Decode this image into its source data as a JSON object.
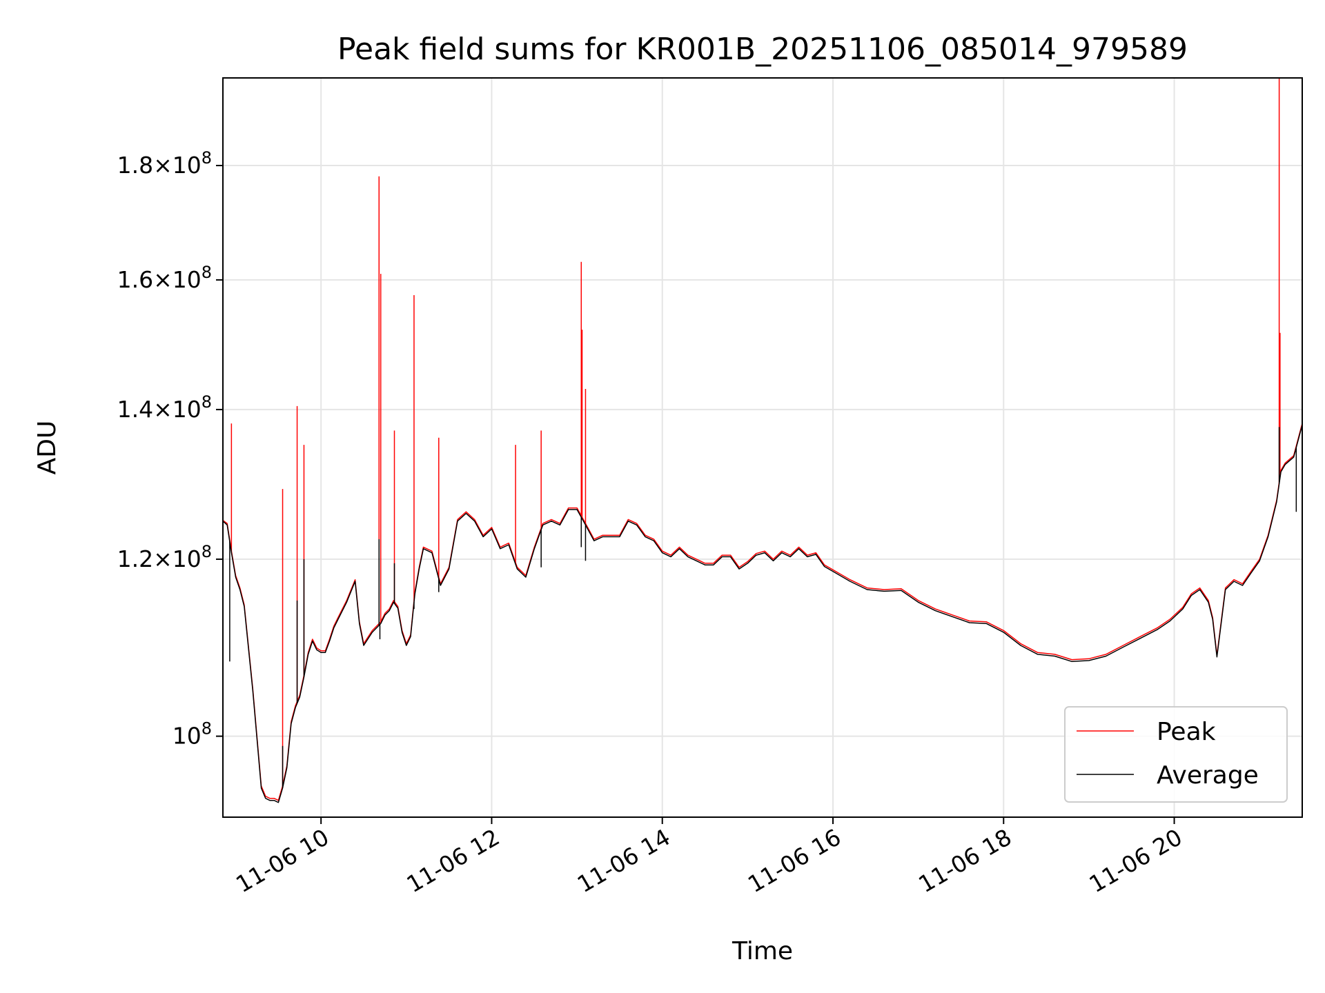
{
  "chart_data": {
    "type": "line",
    "title": "Peak field sums for KR001B_20251106_085014_979589",
    "xlabel": "Time",
    "ylabel": "ADU",
    "yscale": "log",
    "x_unit": "hour of day 2025-11-06",
    "xlim": [
      8.85,
      21.5
    ],
    "ylim": [
      92000000,
      197000000
    ],
    "grid": true,
    "legend_position": "lower-right",
    "x_ticks": [
      {
        "value": 10,
        "label": "11-06 10"
      },
      {
        "value": 12,
        "label": "11-06 12"
      },
      {
        "value": 14,
        "label": "11-06 14"
      },
      {
        "value": 16,
        "label": "11-06 16"
      },
      {
        "value": 18,
        "label": "11-06 18"
      },
      {
        "value": 20,
        "label": "11-06 20"
      }
    ],
    "y_ticks": [
      {
        "value": 100000000,
        "mantissa": "",
        "exp": "8",
        "base": "10"
      },
      {
        "value": 120000000,
        "mantissa": "1.2",
        "exp": "8",
        "base": "10"
      },
      {
        "value": 140000000,
        "mantissa": "1.4",
        "exp": "8",
        "base": "10"
      },
      {
        "value": 160000000,
        "mantissa": "1.6",
        "exp": "8",
        "base": "10"
      },
      {
        "value": 180000000,
        "mantissa": "1.8",
        "exp": "8",
        "base": "10"
      }
    ],
    "series": [
      {
        "name": "Peak",
        "color": "#ff0000",
        "x": [
          8.85,
          8.9,
          8.95,
          9.0,
          9.05,
          9.1,
          9.2,
          9.3,
          9.35,
          9.4,
          9.45,
          9.5,
          9.55,
          9.6,
          9.65,
          9.7,
          9.75,
          9.8,
          9.85,
          9.9,
          9.95,
          10.0,
          10.05,
          10.1,
          10.15,
          10.2,
          10.3,
          10.4,
          10.45,
          10.5,
          10.6,
          10.7,
          10.75,
          10.8,
          10.85,
          10.9,
          10.95,
          11.0,
          11.05,
          11.1,
          11.15,
          11.2,
          11.3,
          11.4,
          11.5,
          11.6,
          11.7,
          11.8,
          11.9,
          12.0,
          12.1,
          12.2,
          12.3,
          12.4,
          12.5,
          12.6,
          12.7,
          12.8,
          12.9,
          13.0,
          13.1,
          13.2,
          13.3,
          13.4,
          13.5,
          13.6,
          13.7,
          13.8,
          13.9,
          14.0,
          14.1,
          14.2,
          14.3,
          14.4,
          14.5,
          14.6,
          14.7,
          14.8,
          14.9,
          15.0,
          15.1,
          15.2,
          15.3,
          15.4,
          15.5,
          15.6,
          15.7,
          15.8,
          15.9,
          16.0,
          16.2,
          16.4,
          16.6,
          16.8,
          17.0,
          17.2,
          17.4,
          17.6,
          17.8,
          18.0,
          18.2,
          18.4,
          18.6,
          18.8,
          19.0,
          19.2,
          19.4,
          19.6,
          19.8,
          19.95,
          20.1,
          20.2,
          20.3,
          20.4,
          20.45,
          20.5,
          20.55,
          20.6,
          20.7,
          20.8,
          20.9,
          21.0,
          21.1,
          21.2,
          21.25,
          21.3,
          21.4,
          21.5
        ],
        "values": [
          124900000,
          124500000,
          121000000,
          118000000,
          116500000,
          114500000,
          105000000,
          95000000,
          94000000,
          93800000,
          93800000,
          93600000,
          95000000,
          97000000,
          101500000,
          103200000,
          104300000,
          106500000,
          109000000,
          110500000,
          109500000,
          109200000,
          109200000,
          110500000,
          112000000,
          113000000,
          115000000,
          117500000,
          112500000,
          110000000,
          111500000,
          112500000,
          113500000,
          114000000,
          115000000,
          114300000,
          111500000,
          110000000,
          111000000,
          116000000,
          119000000,
          121500000,
          121000000,
          117000000,
          119000000,
          125000000,
          126000000,
          125000000,
          123000000,
          124000000,
          121500000,
          122000000,
          119000000,
          118000000,
          121500000,
          124500000,
          125000000,
          124500000,
          126500000,
          126500000,
          124500000,
          122500000,
          123000000,
          123000000,
          123000000,
          125000000,
          124500000,
          123000000,
          122500000,
          121000000,
          120500000,
          121500000,
          120500000,
          120000000,
          119500000,
          119500000,
          120500000,
          120500000,
          119000000,
          119700000,
          120700000,
          121000000,
          120000000,
          121000000,
          120500000,
          121500000,
          120500000,
          120800000,
          119300000,
          118700000,
          117500000,
          116500000,
          116300000,
          116400000,
          115000000,
          114000000,
          113300000,
          112600000,
          112500000,
          111500000,
          110000000,
          109000000,
          108800000,
          108200000,
          108300000,
          108800000,
          109800000,
          110800000,
          111800000,
          112800000,
          114200000,
          115800000,
          116500000,
          115000000,
          113000000,
          108700000,
          112500000,
          116500000,
          117500000,
          117000000,
          118500000,
          120000000,
          123000000,
          127500000,
          131500000,
          132500000,
          133500000,
          138000000
        ],
        "spikes": [
          {
            "x": 8.95,
            "value": 138000000
          },
          {
            "x": 9.55,
            "value": 129000000
          },
          {
            "x": 9.72,
            "value": 140500000
          },
          {
            "x": 9.8,
            "value": 135000000
          },
          {
            "x": 10.68,
            "value": 178000000
          },
          {
            "x": 10.7,
            "value": 161000000
          },
          {
            "x": 10.86,
            "value": 137000000
          },
          {
            "x": 11.09,
            "value": 157500000
          },
          {
            "x": 11.38,
            "value": 136000000
          },
          {
            "x": 12.28,
            "value": 135000000
          },
          {
            "x": 12.58,
            "value": 137000000
          },
          {
            "x": 13.05,
            "value": 163000000
          },
          {
            "x": 13.06,
            "value": 152000000
          },
          {
            "x": 13.1,
            "value": 143000000
          },
          {
            "x": 21.23,
            "value": 197000000
          },
          {
            "x": 21.24,
            "value": 151500000
          }
        ]
      },
      {
        "name": "Average",
        "color": "#000000",
        "x": [
          8.85,
          8.9,
          8.95,
          9.0,
          9.05,
          9.1,
          9.2,
          9.3,
          9.35,
          9.4,
          9.45,
          9.5,
          9.55,
          9.6,
          9.65,
          9.7,
          9.75,
          9.8,
          9.85,
          9.9,
          9.95,
          10.0,
          10.05,
          10.1,
          10.15,
          10.2,
          10.3,
          10.4,
          10.45,
          10.5,
          10.6,
          10.7,
          10.75,
          10.8,
          10.85,
          10.9,
          10.95,
          11.0,
          11.05,
          11.1,
          11.15,
          11.2,
          11.3,
          11.4,
          11.5,
          11.6,
          11.7,
          11.8,
          11.9,
          12.0,
          12.1,
          12.2,
          12.3,
          12.4,
          12.5,
          12.6,
          12.7,
          12.8,
          12.9,
          13.0,
          13.1,
          13.2,
          13.3,
          13.4,
          13.5,
          13.6,
          13.7,
          13.8,
          13.9,
          14.0,
          14.1,
          14.2,
          14.3,
          14.4,
          14.5,
          14.6,
          14.7,
          14.8,
          14.9,
          15.0,
          15.1,
          15.2,
          15.3,
          15.4,
          15.5,
          15.6,
          15.7,
          15.8,
          15.9,
          16.0,
          16.2,
          16.4,
          16.6,
          16.8,
          17.0,
          17.2,
          17.4,
          17.6,
          17.8,
          18.0,
          18.2,
          18.4,
          18.6,
          18.8,
          19.0,
          19.2,
          19.4,
          19.6,
          19.8,
          19.95,
          20.1,
          20.2,
          20.3,
          20.4,
          20.45,
          20.5,
          20.55,
          20.6,
          20.7,
          20.8,
          20.9,
          21.0,
          21.1,
          21.2,
          21.25,
          21.3,
          21.4,
          21.5
        ],
        "values": [
          124800000,
          124300000,
          120800000,
          117800000,
          116300000,
          114300000,
          104800000,
          94800000,
          93800000,
          93600000,
          93600000,
          93400000,
          94800000,
          96800000,
          101300000,
          103000000,
          104100000,
          106300000,
          108800000,
          110300000,
          109300000,
          109000000,
          109000000,
          110300000,
          111800000,
          112800000,
          114800000,
          117300000,
          112300000,
          109800000,
          111300000,
          112300000,
          113300000,
          113800000,
          114800000,
          114100000,
          111300000,
          109800000,
          110800000,
          115800000,
          118800000,
          121300000,
          120800000,
          116800000,
          118800000,
          124800000,
          125800000,
          124800000,
          122800000,
          123800000,
          121300000,
          121800000,
          118800000,
          117800000,
          121300000,
          124300000,
          124800000,
          124300000,
          126300000,
          126300000,
          124300000,
          122300000,
          122800000,
          122800000,
          122800000,
          124800000,
          124300000,
          122800000,
          122300000,
          120800000,
          120300000,
          121300000,
          120300000,
          119800000,
          119300000,
          119300000,
          120300000,
          120300000,
          118800000,
          119500000,
          120500000,
          120800000,
          119800000,
          120800000,
          120300000,
          121300000,
          120300000,
          120600000,
          119100000,
          118500000,
          117300000,
          116300000,
          116100000,
          116200000,
          114800000,
          113800000,
          113100000,
          112400000,
          112300000,
          111300000,
          109800000,
          108800000,
          108600000,
          108000000,
          108100000,
          108600000,
          109600000,
          110600000,
          111600000,
          112600000,
          114000000,
          115600000,
          116300000,
          114800000,
          112800000,
          108500000,
          112300000,
          116300000,
          117300000,
          116800000,
          118300000,
          119800000,
          122800000,
          127300000,
          131300000,
          132300000,
          133300000,
          137800000
        ],
        "spikes": [
          {
            "x": 8.93,
            "value": 108000000
          },
          {
            "x": 9.55,
            "value": 99000000
          },
          {
            "x": 9.72,
            "value": 115000000
          },
          {
            "x": 9.8,
            "value": 120000000
          },
          {
            "x": 10.68,
            "value": 122500000
          },
          {
            "x": 10.69,
            "value": 110500000
          },
          {
            "x": 10.86,
            "value": 119500000
          },
          {
            "x": 11.09,
            "value": 114000000
          },
          {
            "x": 11.38,
            "value": 116000000
          },
          {
            "x": 12.58,
            "value": 119000000
          },
          {
            "x": 13.05,
            "value": 121500000
          },
          {
            "x": 13.1,
            "value": 119800000
          },
          {
            "x": 21.23,
            "value": 137500000
          },
          {
            "x": 21.43,
            "value": 126000000
          }
        ]
      }
    ]
  }
}
